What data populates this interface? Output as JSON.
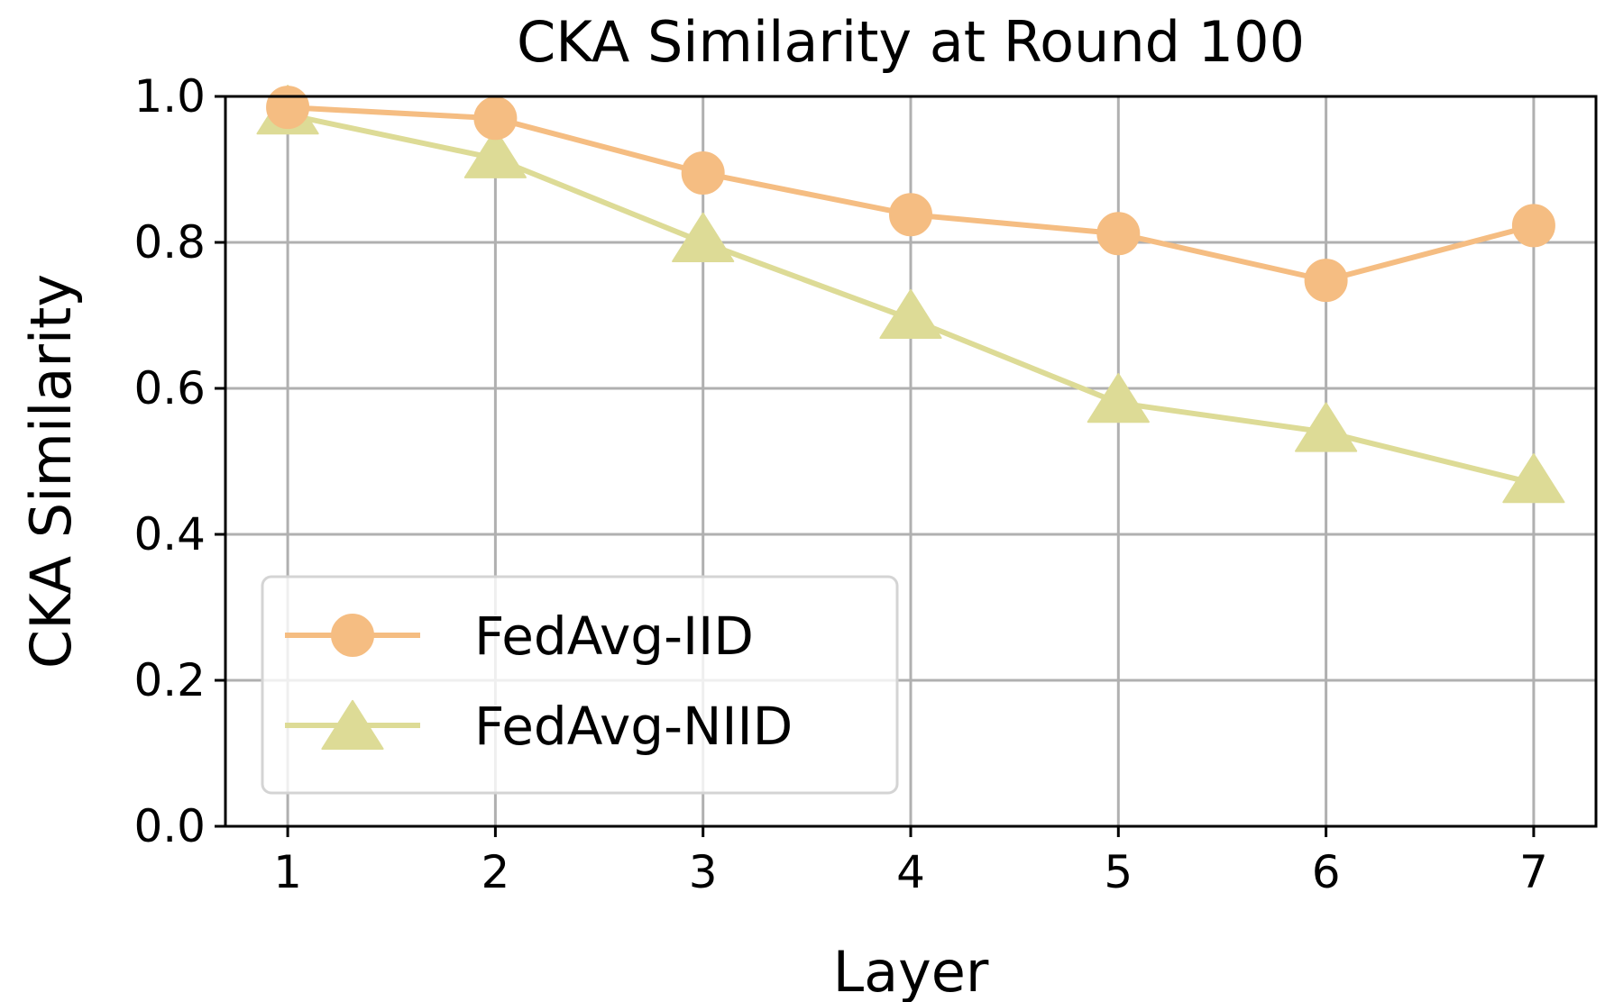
{
  "chart_data": {
    "type": "line",
    "title": "CKA Similarity at Round 100",
    "xlabel": "Layer",
    "ylabel": "CKA Similarity",
    "x": [
      1,
      2,
      3,
      4,
      5,
      6,
      7
    ],
    "xlim": [
      0.7,
      7.3
    ],
    "ylim": [
      0.0,
      1.0
    ],
    "xticks": [
      "1",
      "2",
      "3",
      "4",
      "5",
      "6",
      "7"
    ],
    "yticks": [
      "0.0",
      "0.2",
      "0.4",
      "0.6",
      "0.8",
      "1.0"
    ],
    "grid": true,
    "legend_position": "lower-left",
    "series": [
      {
        "name": "FedAvg-IID",
        "marker": "circle",
        "color": "#f5bd82",
        "values": [
          0.985,
          0.97,
          0.895,
          0.838,
          0.812,
          0.748,
          0.823
        ]
      },
      {
        "name": "FedAvg-NIID",
        "marker": "triangle",
        "color": "#dddb96",
        "values": [
          0.975,
          0.915,
          0.8,
          0.695,
          0.58,
          0.54,
          0.47
        ]
      }
    ]
  }
}
